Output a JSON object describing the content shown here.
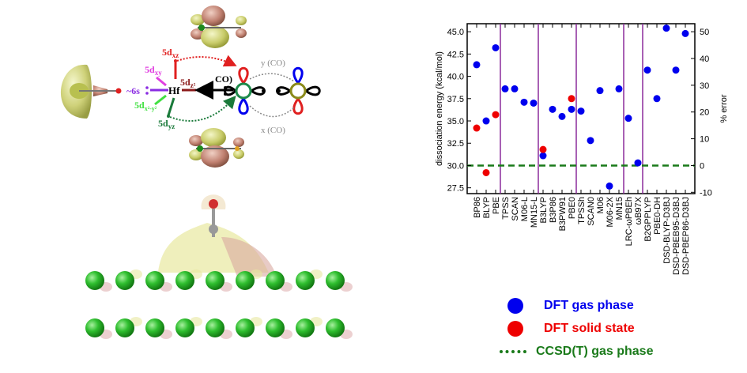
{
  "diagram": {
    "labels": {
      "d_xz": {
        "main": "5d",
        "sub": "xz",
        "color": "#e02020"
      },
      "d_xy": {
        "main": "5d",
        "sub": "xy",
        "color": "#e040e0"
      },
      "d_z2": {
        "main": "5d",
        "sub": "z²",
        "color": "#8b1a1a"
      },
      "d_x2y2": {
        "main": "5d",
        "sub": "x²-y²",
        "color": "#40e040"
      },
      "d_yz": {
        "main": "5d",
        "sub": "yz",
        "color": "#1a7a3a"
      },
      "s6": {
        "text": "~6s",
        "color": "#8a2be2"
      },
      "hf": "Hf",
      "co": "CO)",
      "y_co": "y (CO)",
      "x_co": "x (CO)"
    }
  },
  "legend": {
    "gas": {
      "label": "DFT gas phase",
      "color": "#0000ee"
    },
    "solid": {
      "label": "DFT solid state",
      "color": "#ee0000"
    },
    "ccsd": {
      "label": "CCSD(T) gas phase",
      "color": "#1a7a1a"
    }
  },
  "chart_data": {
    "type": "scatter",
    "ylabel": "dissociation energy (kcal/mol)",
    "y2label": "% error",
    "ylim": [
      26.85,
      45.9
    ],
    "y2lim": [
      -10.5,
      53
    ],
    "yticks": [
      "27.5",
      "30.0",
      "32.5",
      "35.0",
      "37.5",
      "40.0",
      "42.5",
      "45.0"
    ],
    "y2ticks": [
      "-10",
      "0",
      "10",
      "20",
      "30",
      "40",
      "50"
    ],
    "categories": [
      "BP86",
      "BLYP",
      "PBE",
      "TPSS",
      "SCAN",
      "M06-L",
      "MN15-L",
      "B3LYP",
      "B3P86",
      "B3PW91",
      "PBE0",
      "TPSSh",
      "SCAN0",
      "M06",
      "M06-2X",
      "MN15",
      "LRC-ωPBEh",
      "ωB97X",
      "B2GPPLYP",
      "PBE0-DH",
      "DSD-BLYP-D3BJ",
      "DSD-PBEB95-D3BJ",
      "DSD-PBEP86-D3BJ"
    ],
    "separators_after": [
      "PBE",
      "MN15-L",
      "PBE0",
      "MN15",
      "ωB97X"
    ],
    "reference": {
      "name": "CCSD(T) gas phase",
      "value": 30.0
    },
    "series": [
      {
        "name": "DFT gas phase",
        "color": "#0000ee",
        "values": [
          41.3,
          35.0,
          43.2,
          38.6,
          38.6,
          37.1,
          37.0,
          31.1,
          36.3,
          35.5,
          36.3,
          36.1,
          32.8,
          38.4,
          27.7,
          38.6,
          35.3,
          30.3,
          40.7,
          37.5,
          45.4,
          40.7,
          44.8
        ]
      },
      {
        "name": "DFT solid state",
        "color": "#ee0000",
        "values": [
          34.2,
          29.2,
          35.7,
          null,
          null,
          null,
          null,
          31.8,
          null,
          null,
          37.5,
          null,
          null,
          null,
          null,
          null,
          null,
          null,
          null,
          null,
          null,
          null,
          null
        ]
      }
    ]
  }
}
